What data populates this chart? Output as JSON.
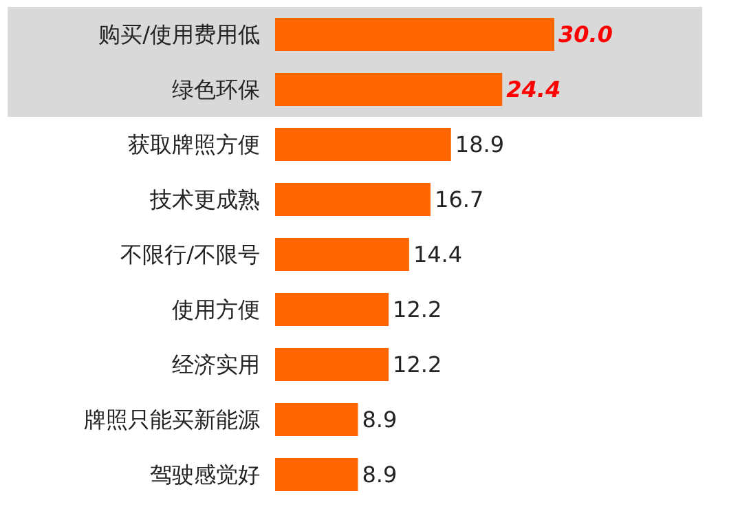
{
  "chart_data": {
    "type": "bar",
    "orientation": "horizontal",
    "categories": [
      "购买/使用费用低",
      "绿色环保",
      "获取牌照方便",
      "技术更成熟",
      "不限行/不限号",
      "使用方便",
      "经济实用",
      "牌照只能买新能源",
      "驾驶感觉好"
    ],
    "values": [
      30.0,
      24.4,
      18.9,
      16.7,
      14.4,
      12.2,
      12.2,
      8.9,
      8.9
    ],
    "value_labels": [
      "30.0",
      "24.4",
      "18.9",
      "16.7",
      "14.4",
      "12.2",
      "12.2",
      "8.9",
      "8.9"
    ],
    "color": "#ff6600",
    "bands": [
      {
        "axis": "y",
        "from": "购买/使用费用低",
        "to": "绿色环保",
        "color": "#d9d9d9"
      }
    ]
  }
}
